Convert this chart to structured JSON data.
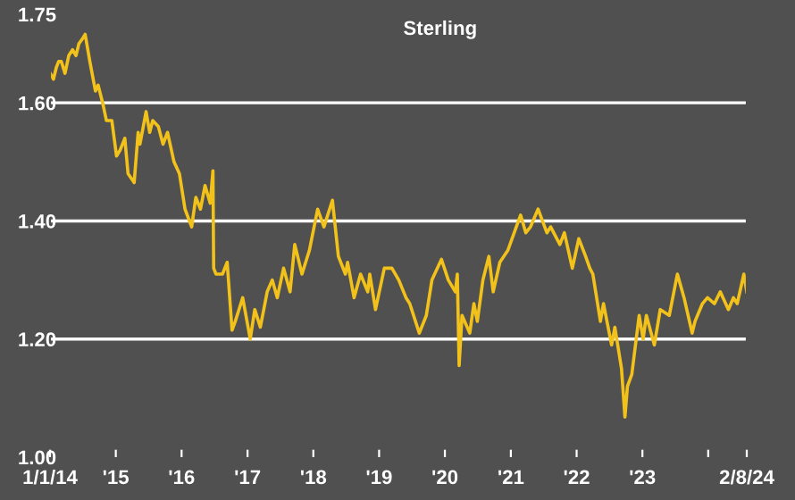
{
  "chart_data": {
    "type": "line",
    "title": "Sterling",
    "x": [
      "2014-01-02",
      "2014-01-20",
      "2014-02-05",
      "2014-02-18",
      "2014-03-05",
      "2014-03-25",
      "2014-04-15",
      "2014-05-06",
      "2014-05-25",
      "2014-06-10",
      "2014-07-03",
      "2014-07-15",
      "2014-08-10",
      "2014-09-10",
      "2014-09-25",
      "2014-10-20",
      "2014-11-10",
      "2014-12-10",
      "2015-01-05",
      "2015-01-25",
      "2015-02-20",
      "2015-03-10",
      "2015-04-13",
      "2015-05-05",
      "2015-05-15",
      "2015-06-18",
      "2015-07-08",
      "2015-07-25",
      "2015-08-25",
      "2015-09-20",
      "2015-10-15",
      "2015-11-20",
      "2015-12-20",
      "2016-01-20",
      "2016-02-26",
      "2016-03-20",
      "2016-04-15",
      "2016-05-10",
      "2016-06-08",
      "2016-06-23",
      "2016-06-27",
      "2016-07-10",
      "2016-08-15",
      "2016-09-10",
      "2016-10-07",
      "2016-10-25",
      "2016-12-05",
      "2017-01-16",
      "2017-02-10",
      "2017-03-13",
      "2017-04-20",
      "2017-05-18",
      "2017-06-15",
      "2017-07-20",
      "2017-08-25",
      "2017-09-20",
      "2017-10-30",
      "2017-12-10",
      "2018-01-25",
      "2018-03-01",
      "2018-04-17",
      "2018-05-20",
      "2018-06-28",
      "2018-07-10",
      "2018-08-15",
      "2018-09-20",
      "2018-10-30",
      "2018-11-10",
      "2018-12-12",
      "2019-01-30",
      "2019-03-13",
      "2019-04-20",
      "2019-05-30",
      "2019-06-20",
      "2019-08-12",
      "2019-09-20",
      "2019-10-21",
      "2019-12-13",
      "2020-01-20",
      "2020-02-28",
      "2020-03-10",
      "2020-03-20",
      "2020-04-05",
      "2020-05-18",
      "2020-06-10",
      "2020-06-29",
      "2020-07-30",
      "2020-09-01",
      "2020-09-25",
      "2020-11-01",
      "2020-12-15",
      "2021-02-24",
      "2021-03-25",
      "2021-04-20",
      "2021-06-01",
      "2021-07-20",
      "2021-08-10",
      "2021-09-30",
      "2021-10-25",
      "2021-12-08",
      "2022-01-13",
      "2022-02-20",
      "2022-03-15",
      "2022-04-01",
      "2022-05-13",
      "2022-05-30",
      "2022-07-14",
      "2022-08-01",
      "2022-09-07",
      "2022-09-26",
      "2022-10-10",
      "2022-11-03",
      "2022-12-14",
      "2023-01-05",
      "2023-01-23",
      "2023-03-08",
      "2023-04-10",
      "2023-05-30",
      "2023-07-14",
      "2023-08-20",
      "2023-10-04",
      "2023-10-20",
      "2023-11-30",
      "2023-12-28",
      "2024-02-05",
      "2024-03-08",
      "2024-04-22",
      "2024-05-20",
      "2024-06-10",
      "2024-07-17",
      "2024-08-02"
    ],
    "series": [
      {
        "color": "#f2c21b",
        "values": [
          1.65,
          1.64,
          1.66,
          1.67,
          1.67,
          1.65,
          1.68,
          1.69,
          1.68,
          1.7,
          1.71,
          1.716,
          1.67,
          1.62,
          1.63,
          1.6,
          1.57,
          1.57,
          1.51,
          1.52,
          1.54,
          1.48,
          1.465,
          1.55,
          1.53,
          1.585,
          1.55,
          1.57,
          1.56,
          1.53,
          1.55,
          1.5,
          1.48,
          1.42,
          1.39,
          1.44,
          1.42,
          1.46,
          1.43,
          1.485,
          1.32,
          1.31,
          1.31,
          1.33,
          1.215,
          1.23,
          1.27,
          1.2,
          1.25,
          1.22,
          1.28,
          1.3,
          1.27,
          1.32,
          1.28,
          1.36,
          1.31,
          1.35,
          1.42,
          1.39,
          1.435,
          1.34,
          1.31,
          1.33,
          1.27,
          1.31,
          1.28,
          1.31,
          1.25,
          1.32,
          1.32,
          1.3,
          1.27,
          1.26,
          1.21,
          1.24,
          1.3,
          1.335,
          1.3,
          1.28,
          1.31,
          1.155,
          1.24,
          1.21,
          1.26,
          1.23,
          1.3,
          1.34,
          1.28,
          1.33,
          1.35,
          1.41,
          1.38,
          1.39,
          1.42,
          1.38,
          1.39,
          1.36,
          1.38,
          1.32,
          1.37,
          1.34,
          1.32,
          1.31,
          1.23,
          1.26,
          1.19,
          1.22,
          1.15,
          1.068,
          1.12,
          1.14,
          1.24,
          1.2,
          1.24,
          1.19,
          1.25,
          1.24,
          1.31,
          1.27,
          1.21,
          1.23,
          1.26,
          1.27,
          1.26,
          1.28,
          1.25,
          1.27,
          1.26,
          1.31,
          1.28
        ]
      }
    ],
    "xlim": [
      "2014-01-01",
      "2024-08-02"
    ],
    "xticks": [
      {
        "value": "2014-01-01",
        "label": "1/1/14"
      },
      {
        "value": "2015-01-01",
        "label": "'15"
      },
      {
        "value": "2016-01-01",
        "label": "'16"
      },
      {
        "value": "2017-01-01",
        "label": "'17"
      },
      {
        "value": "2018-01-01",
        "label": "'18"
      },
      {
        "value": "2019-01-01",
        "label": "'19"
      },
      {
        "value": "2020-01-01",
        "label": "'20"
      },
      {
        "value": "2021-01-01",
        "label": "'21"
      },
      {
        "value": "2022-01-01",
        "label": "'22"
      },
      {
        "value": "2023-01-01",
        "label": "'23"
      },
      {
        "value": "2024-01-01",
        "label": null
      },
      {
        "value": "2024-08-02",
        "label": "2/8/24"
      }
    ],
    "ylim": [
      1.0,
      1.75
    ],
    "yticks": [
      {
        "value": 1.0,
        "label": "1.00"
      },
      {
        "value": 1.2,
        "label": "1.20"
      },
      {
        "value": 1.4,
        "label": "1.40"
      },
      {
        "value": 1.6,
        "label": "1.60"
      },
      {
        "value": 1.75,
        "label": "1.75"
      }
    ],
    "grid": "y",
    "legend": false
  }
}
